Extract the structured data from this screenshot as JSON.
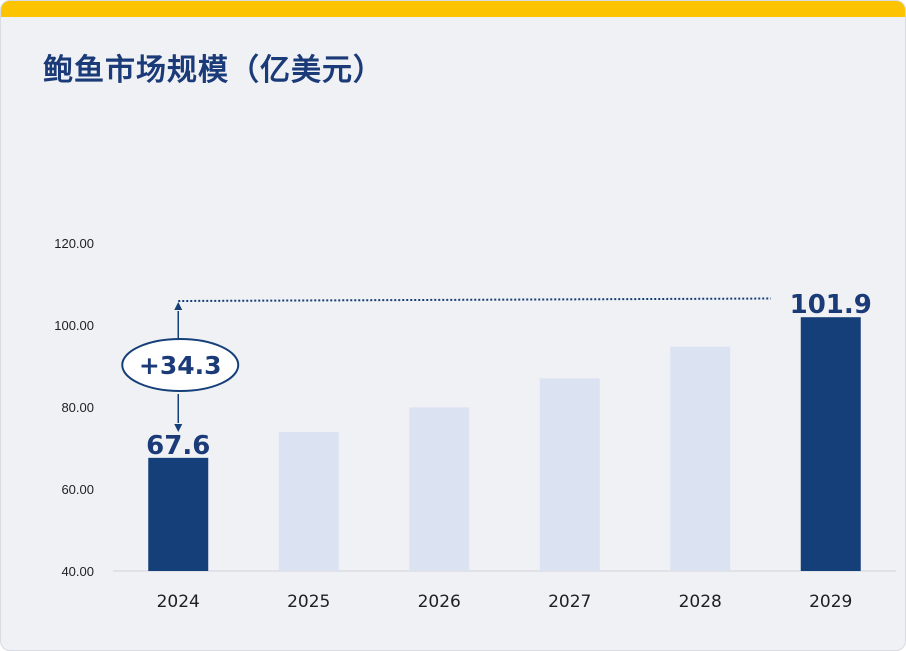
{
  "header": {
    "title": "鲍鱼市场规模（亿美元）"
  },
  "colors": {
    "accent_bar": "#fcc300",
    "highlight": "#153f78",
    "muted": "#dbe3f3",
    "text_dark": "#1a3a78"
  },
  "chart_data": {
    "type": "bar",
    "title": "鲍鱼市场规模（亿美元）",
    "xlabel": "",
    "ylabel": "",
    "categories": [
      "2024",
      "2025",
      "2026",
      "2027",
      "2028",
      "2029"
    ],
    "values": [
      67.6,
      73.9,
      79.9,
      87.0,
      94.7,
      101.9
    ],
    "highlighted": [
      "2024",
      "2029"
    ],
    "ylim": [
      40,
      120
    ],
    "yticks": [
      "40.00",
      "60.00",
      "80.00",
      "100.00",
      "120.00"
    ],
    "data_labels": {
      "2024": "67.6",
      "2029": "101.9"
    },
    "annotation": {
      "label": "+34.3",
      "from": "2024",
      "to": "2029"
    },
    "grid": false,
    "legend": "none"
  }
}
